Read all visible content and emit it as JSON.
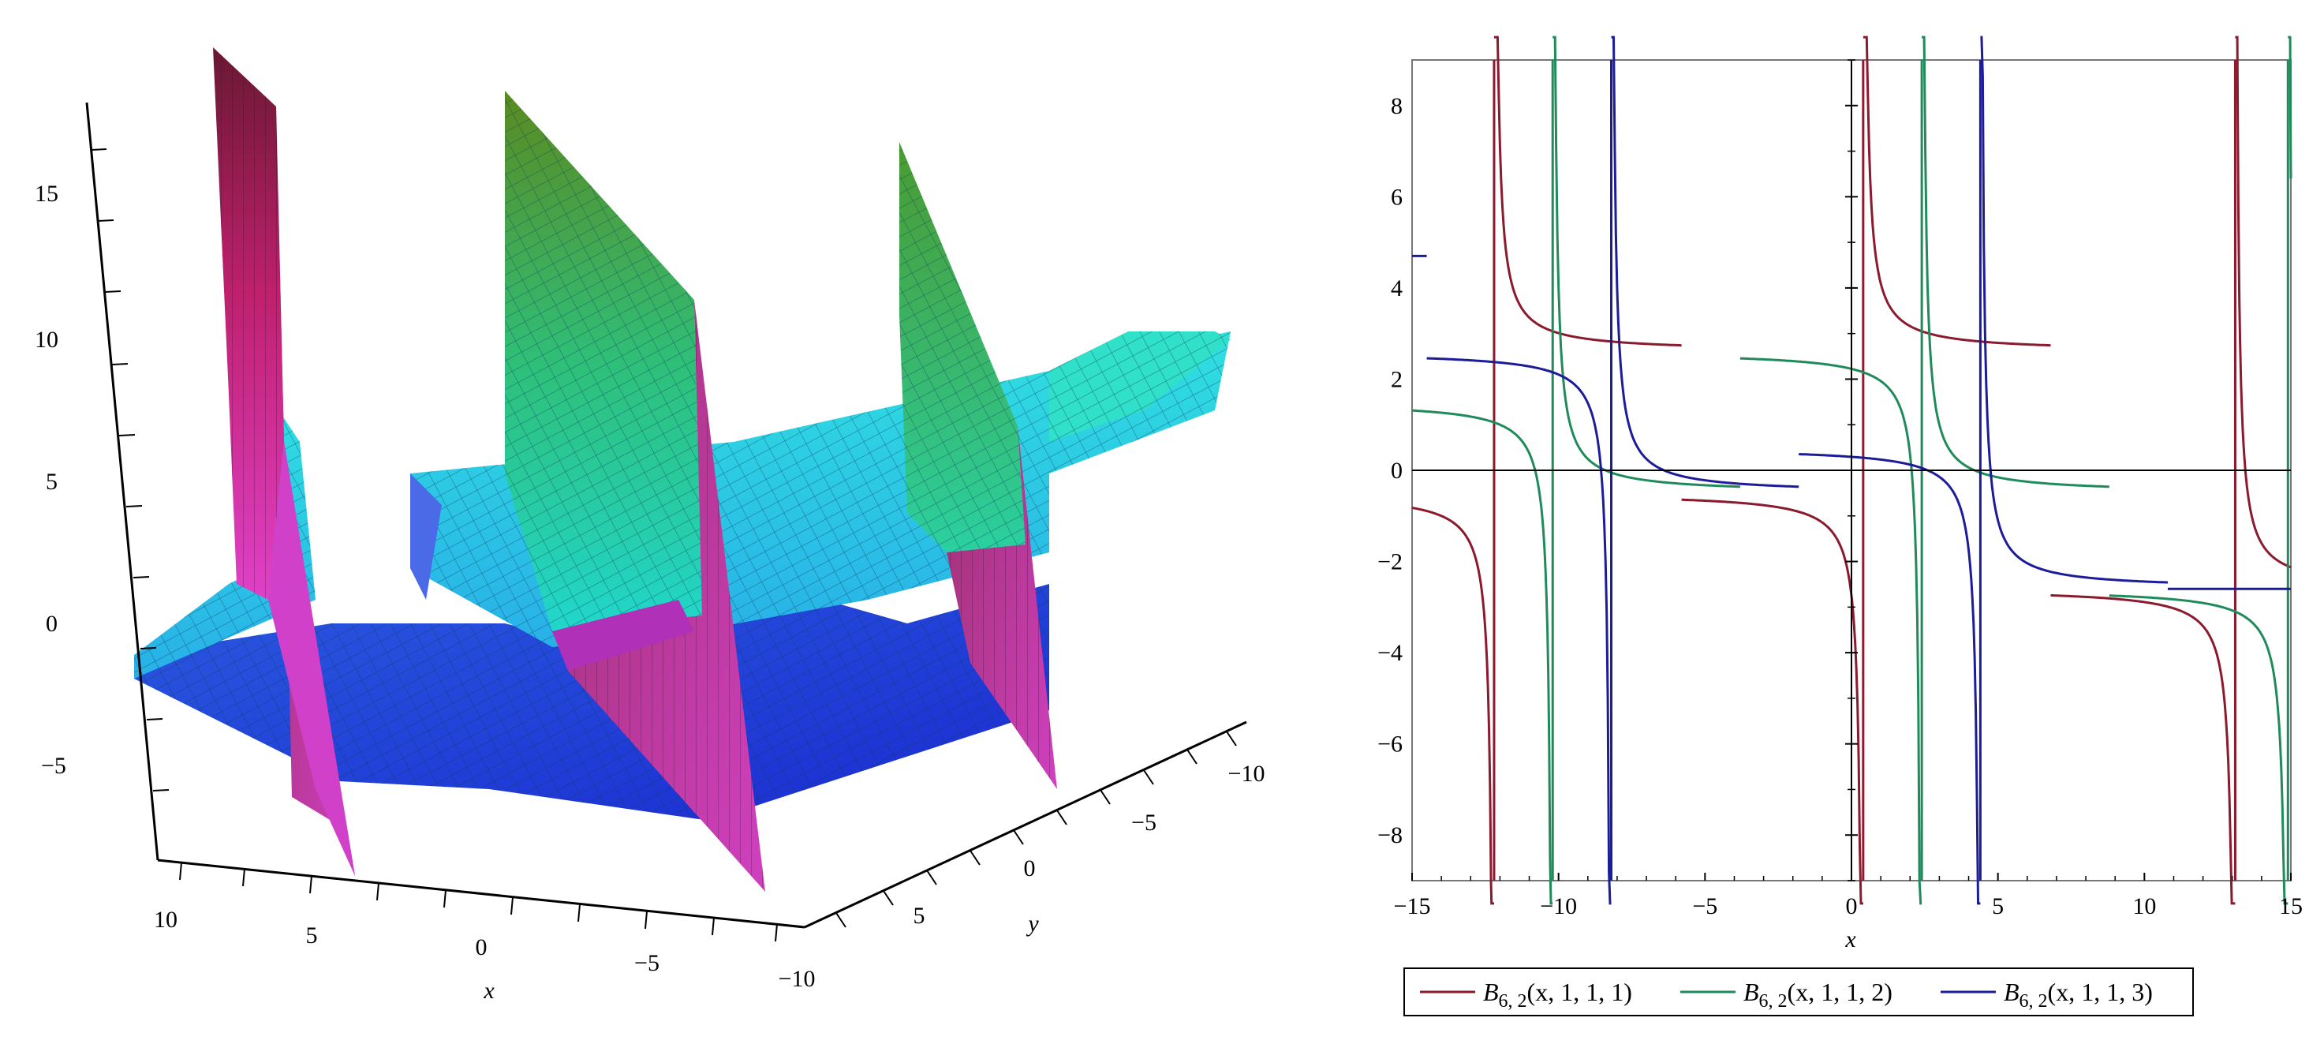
{
  "surface_plot": {
    "type": "surface-3d",
    "z_ticks": [
      "15",
      "10",
      "5",
      "0",
      "−5"
    ],
    "x_ticks": [
      "10",
      "5",
      "0",
      "−5",
      "−10"
    ],
    "y_ticks": [
      "5",
      "0",
      "−5",
      "−10"
    ],
    "x_label": "x",
    "y_label": "y"
  },
  "chart_data": {
    "type": "line",
    "xlim": [
      -15,
      15
    ],
    "ylim": [
      -9,
      9
    ],
    "x_ticks": [
      -15,
      -10,
      -5,
      0,
      5,
      10,
      15
    ],
    "y_ticks": [
      -8,
      -6,
      -4,
      -2,
      0,
      2,
      4,
      6,
      8
    ],
    "x_tick_labels": [
      "−15",
      "−10",
      "−5",
      "0",
      "5",
      "10",
      "15"
    ],
    "y_tick_labels": [
      "−8",
      "−6",
      "−4",
      "−2",
      "0",
      "2",
      "4",
      "6",
      "8"
    ],
    "xlabel": "x",
    "ylabel": "",
    "grid": false,
    "legend_position": "bottom",
    "series": [
      {
        "name": "B6, 2(x, 1, 1, 1)",
        "color": "#8b1a2e",
        "legend": {
          "base": "B",
          "sub": "6, 2",
          "args": "(x, 1, 1, 1)"
        },
        "poles": [
          -12.2,
          0.4,
          13.1
        ],
        "plateaus": [
          -0.5,
          2.6,
          -0.5,
          2.6,
          -2.6
        ],
        "jumps": [
          -5.8,
          6.8
        ]
      },
      {
        "name": "B6, 2(x, 1, 1, 2)",
        "color": "#1f8a5a",
        "legend": {
          "base": "B",
          "sub": "6, 2",
          "args": "(x, 1, 1, 2)"
        },
        "poles": [
          -10.2,
          2.4,
          14.9
        ],
        "plateaus": [
          1.5,
          -0.5,
          2.6,
          -0.5,
          -2.6
        ],
        "jumps": [
          -3.8,
          8.8
        ]
      },
      {
        "name": "B6, 2(x, 1, 1, 3)",
        "color": "#1c1c9a",
        "legend": {
          "base": "B",
          "sub": "6, 2",
          "args": "(x, 1, 1, 3)"
        },
        "poles": [
          -8.2,
          4.4
        ],
        "plateaus": [
          1.5,
          2.6,
          -0.5,
          0.5,
          -2.6
        ],
        "jumps": [
          -14.5,
          -1.8,
          10.8
        ],
        "first_step": 4.7
      }
    ]
  }
}
